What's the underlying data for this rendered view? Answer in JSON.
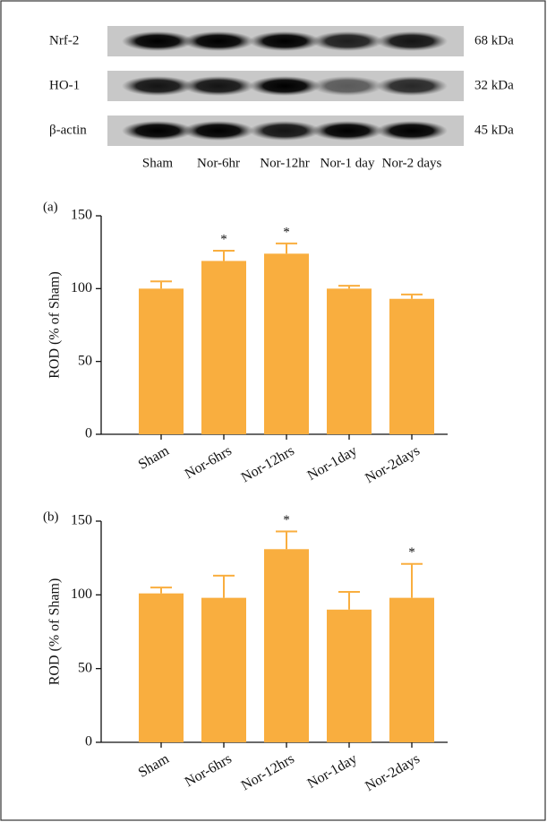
{
  "blot": {
    "rows": [
      {
        "label": "Nrf-2",
        "size": "68 kDa"
      },
      {
        "label": "HO-1",
        "size": "32 kDa"
      },
      {
        "label": "β-actin",
        "size": "45 kDa"
      }
    ],
    "lanes": [
      "Sham",
      "Nor-6hr",
      "Nor-12hr",
      "Nor-1 day",
      "Nor-2 days"
    ]
  },
  "chart_data": [
    {
      "type": "bar",
      "panel": "(a)",
      "y_label": "ROD (% of Sham)",
      "categories": [
        "Sham",
        "Nor-6hrs",
        "Nor-12hrs",
        "Nor-1day",
        "Nor-2days"
      ],
      "values": [
        100,
        119,
        124,
        100,
        93
      ],
      "errors": [
        5,
        7,
        7,
        2,
        3
      ],
      "markers": [
        null,
        "*",
        "*",
        null,
        null
      ],
      "color": "#f9ae3f",
      "ylim": [
        0,
        150
      ],
      "yticks": [
        0,
        50,
        100,
        150
      ]
    },
    {
      "type": "bar",
      "panel": "(b)",
      "y_label": "ROD (% of Sham)",
      "categories": [
        "Sham",
        "Nor-6hrs",
        "Nor-12hrs",
        "Nor-1day",
        "Nor-2days"
      ],
      "values": [
        101,
        98,
        131,
        90,
        98
      ],
      "errors": [
        4,
        15,
        12,
        12,
        23
      ],
      "markers": [
        null,
        null,
        "*",
        null,
        "*"
      ],
      "color": "#f9ae3f",
      "ylim": [
        0,
        150
      ],
      "yticks": [
        0,
        50,
        100,
        150
      ]
    }
  ]
}
